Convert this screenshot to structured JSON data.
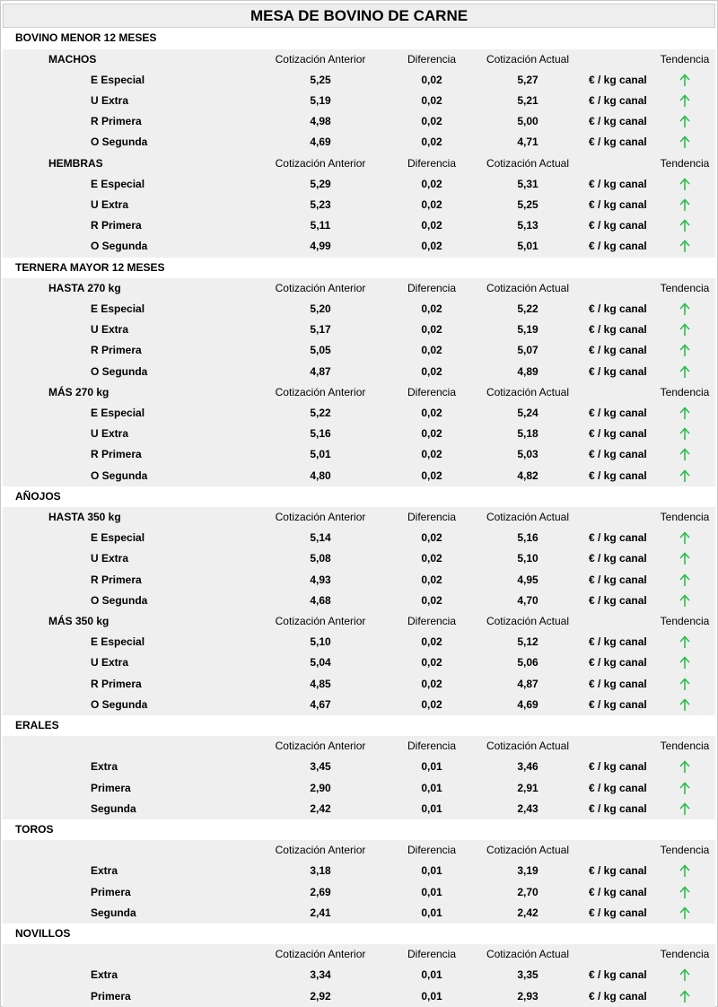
{
  "title": "MESA DE BOVINO DE CARNE",
  "columns": {
    "anterior": "Cotización Anterior",
    "diferencia": "Diferencia",
    "actual": "Cotización Actual",
    "tendencia": "Tendencia"
  },
  "unit": "€ / kg canal",
  "sections": [
    {
      "name": "BOVINO MENOR 12 MESES",
      "groups": [
        {
          "name": "MACHOS",
          "rows": [
            {
              "name": "E Especial",
              "anterior": "5,25",
              "diferencia": "0,02",
              "actual": "5,27"
            },
            {
              "name": "U Extra",
              "anterior": "5,19",
              "diferencia": "0,02",
              "actual": "5,21"
            },
            {
              "name": "R Primera",
              "anterior": "4,98",
              "diferencia": "0,02",
              "actual": "5,00"
            },
            {
              "name": "O Segunda",
              "anterior": "4,69",
              "diferencia": "0,02",
              "actual": "4,71"
            }
          ]
        },
        {
          "name": "HEMBRAS",
          "rows": [
            {
              "name": "E Especial",
              "anterior": "5,29",
              "diferencia": "0,02",
              "actual": "5,31"
            },
            {
              "name": "U Extra",
              "anterior": "5,23",
              "diferencia": "0,02",
              "actual": "5,25"
            },
            {
              "name": "R Primera",
              "anterior": "5,11",
              "diferencia": "0,02",
              "actual": "5,13"
            },
            {
              "name": "O Segunda",
              "anterior": "4,99",
              "diferencia": "0,02",
              "actual": "5,01"
            }
          ]
        }
      ]
    },
    {
      "name": "TERNERA MAYOR 12 MESES",
      "groups": [
        {
          "name": "HASTA 270 kg",
          "rows": [
            {
              "name": "E Especial",
              "anterior": "5,20",
              "diferencia": "0,02",
              "actual": "5,22"
            },
            {
              "name": "U Extra",
              "anterior": "5,17",
              "diferencia": "0,02",
              "actual": "5,19"
            },
            {
              "name": "R Primera",
              "anterior": "5,05",
              "diferencia": "0,02",
              "actual": "5,07"
            },
            {
              "name": "O Segunda",
              "anterior": "4,87",
              "diferencia": "0,02",
              "actual": "4,89"
            }
          ]
        },
        {
          "name": "MÁS 270 kg",
          "rows": [
            {
              "name": "E Especial",
              "anterior": "5,22",
              "diferencia": "0,02",
              "actual": "5,24"
            },
            {
              "name": "U Extra",
              "anterior": "5,16",
              "diferencia": "0,02",
              "actual": "5,18"
            },
            {
              "name": "R Primera",
              "anterior": "5,01",
              "diferencia": "0,02",
              "actual": "5,03"
            },
            {
              "name": "O Segunda",
              "anterior": "4,80",
              "diferencia": "0,02",
              "actual": "4,82"
            }
          ]
        }
      ]
    },
    {
      "name": "AÑOJOS",
      "groups": [
        {
          "name": "HASTA 350 kg",
          "rows": [
            {
              "name": "E Especial",
              "anterior": "5,14",
              "diferencia": "0,02",
              "actual": "5,16"
            },
            {
              "name": "U Extra",
              "anterior": "5,08",
              "diferencia": "0,02",
              "actual": "5,10"
            },
            {
              "name": "R Primera",
              "anterior": "4,93",
              "diferencia": "0,02",
              "actual": "4,95"
            },
            {
              "name": "O Segunda",
              "anterior": "4,68",
              "diferencia": "0,02",
              "actual": "4,70"
            }
          ]
        },
        {
          "name": "MÁS 350 kg",
          "rows": [
            {
              "name": "E Especial",
              "anterior": "5,10",
              "diferencia": "0,02",
              "actual": "5,12"
            },
            {
              "name": "U Extra",
              "anterior": "5,04",
              "diferencia": "0,02",
              "actual": "5,06"
            },
            {
              "name": "R Primera",
              "anterior": "4,85",
              "diferencia": "0,02",
              "actual": "4,87"
            },
            {
              "name": "O Segunda",
              "anterior": "4,67",
              "diferencia": "0,02",
              "actual": "4,69"
            }
          ]
        }
      ]
    },
    {
      "name": "ERALES",
      "groups": [
        {
          "rows": [
            {
              "name": "Extra",
              "anterior": "3,45",
              "diferencia": "0,01",
              "actual": "3,46"
            },
            {
              "name": "Primera",
              "anterior": "2,90",
              "diferencia": "0,01",
              "actual": "2,91"
            },
            {
              "name": "Segunda",
              "anterior": "2,42",
              "diferencia": "0,01",
              "actual": "2,43"
            }
          ]
        }
      ]
    },
    {
      "name": "TOROS",
      "groups": [
        {
          "rows": [
            {
              "name": "Extra",
              "anterior": "3,18",
              "diferencia": "0,01",
              "actual": "3,19"
            },
            {
              "name": "Primera",
              "anterior": "2,69",
              "diferencia": "0,01",
              "actual": "2,70"
            },
            {
              "name": "Segunda",
              "anterior": "2,41",
              "diferencia": "0,01",
              "actual": "2,42"
            }
          ]
        }
      ]
    },
    {
      "name": "NOVILLOS",
      "groups": [
        {
          "rows": [
            {
              "name": "Extra",
              "anterior": "3,34",
              "diferencia": "0,01",
              "actual": "3,35"
            },
            {
              "name": "Primera",
              "anterior": "2,92",
              "diferencia": "0,01",
              "actual": "2,93"
            }
          ]
        }
      ]
    }
  ]
}
